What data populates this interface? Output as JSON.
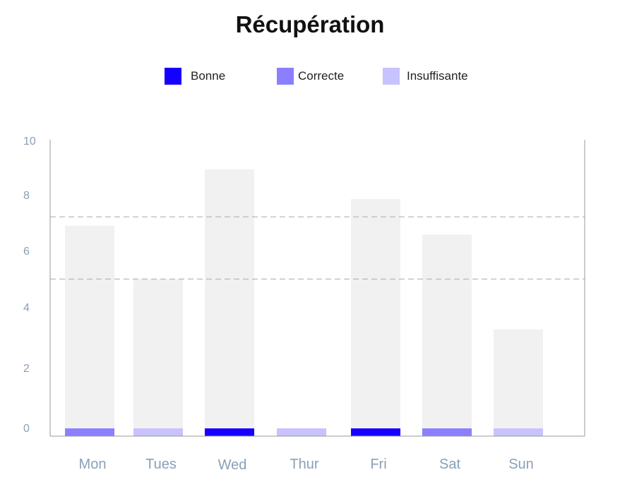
{
  "title": "Récupération",
  "legend": {
    "items": [
      {
        "label": "Bonne",
        "color": "#1500ff"
      },
      {
        "label": "Correcte",
        "color": "#8c7fff"
      },
      {
        "label": "Insuffisante",
        "color": "#c8c2ff"
      }
    ]
  },
  "chart_data": {
    "type": "bar",
    "title": "Récupération",
    "categories": [
      "Mon",
      "Tues",
      "Wed",
      "Thur",
      "Fri",
      "Sat",
      "Sun"
    ],
    "values": [
      7.1,
      5.3,
      9.0,
      0,
      8.0,
      6.8,
      3.6
    ],
    "status": [
      "Correcte",
      "Insuffisante",
      "Bonne",
      "Insuffisante",
      "Bonne",
      "Correcte",
      "Insuffisante"
    ],
    "y_ticks": [
      "0",
      "2",
      "4",
      "6",
      "8",
      "10"
    ],
    "ylim": [
      0,
      10
    ],
    "reference_lines": [
      5.3,
      7.4
    ],
    "grid": false,
    "legend_position": "top-center",
    "colors": {
      "bar_background": "#f1f1f1",
      "axis": "#999999",
      "reference_line": "#aaaaaa",
      "tick_text": "#8aa0b8"
    }
  }
}
